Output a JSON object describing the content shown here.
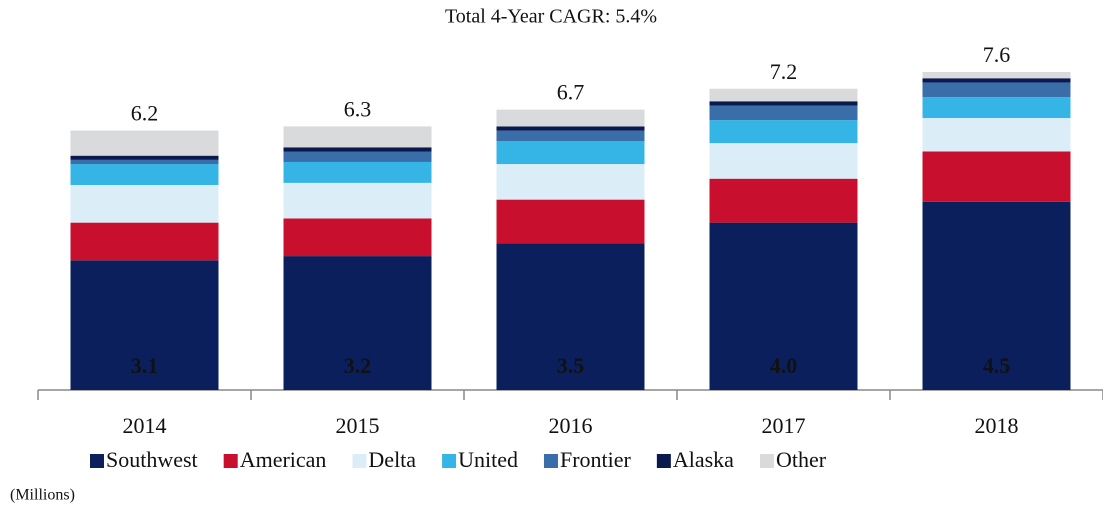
{
  "chart_data": {
    "type": "stacked_bar",
    "title": "Total 4-Year CAGR: 5.4%",
    "note": "(Millions)",
    "categories": [
      "2014",
      "2015",
      "2016",
      "2017",
      "2018"
    ],
    "totals": [
      6.2,
      6.3,
      6.7,
      7.2,
      7.6
    ],
    "series": [
      {
        "name": "Southwest",
        "color": "#0b1f5c",
        "values": [
          3.1,
          3.2,
          3.5,
          4.0,
          4.5
        ],
        "value_labels": [
          "3.1",
          "3.2",
          "3.5",
          "4.0",
          "4.5"
        ]
      },
      {
        "name": "American",
        "color": "#c8102e",
        "values": [
          0.9,
          0.9,
          1.05,
          1.05,
          1.2
        ]
      },
      {
        "name": "Delta",
        "color": "#dbeef8",
        "values": [
          0.9,
          0.85,
          0.85,
          0.85,
          0.8
        ]
      },
      {
        "name": "United",
        "color": "#35b5e5",
        "values": [
          0.5,
          0.5,
          0.55,
          0.55,
          0.5
        ]
      },
      {
        "name": "Frontier",
        "color": "#3a6ea8",
        "values": [
          0.1,
          0.25,
          0.25,
          0.35,
          0.35
        ]
      },
      {
        "name": "Alaska",
        "color": "#0a1a4f",
        "values": [
          0.1,
          0.1,
          0.1,
          0.1,
          0.1
        ]
      },
      {
        "name": "Other",
        "color": "#d9dadc",
        "values": [
          0.6,
          0.5,
          0.4,
          0.3,
          0.15
        ]
      }
    ]
  }
}
